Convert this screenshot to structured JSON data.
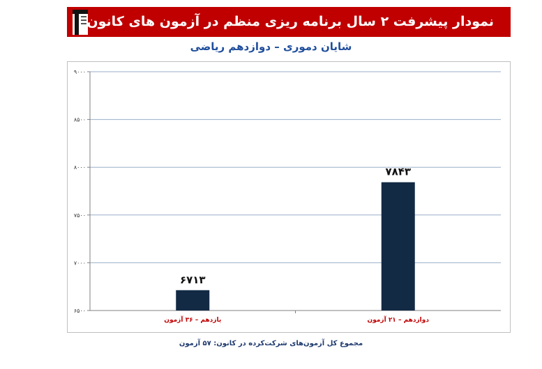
{
  "header": {
    "title": "نمودار پیشرفت ۲ سال برنامه ریزی منظم در آزمون های کانون",
    "subtitle": "شایان دموری – دوازدهم ریاضی",
    "banner_color": "#c00000",
    "logo_icon": "kanoon-logo-icon"
  },
  "footer": {
    "note": "مجموع کل آزمون‌های شرکت‌کرده در کانون: ۵۷ آزمون"
  },
  "chart_data": {
    "type": "bar",
    "categories": [
      "یازدهم – ۳۶ آزمون",
      "دوازدهم – ۲۱ آزمون"
    ],
    "values": [
      6713,
      7843
    ],
    "value_labels": [
      "۶۷۱۳",
      "۷۸۴۳"
    ],
    "ylim": [
      6500,
      9000
    ],
    "yticks": [
      6500,
      7000,
      7500,
      8000,
      8500,
      9000
    ],
    "ytick_labels": [
      "۶۵۰۰",
      "۷۰۰۰",
      "۷۵۰۰",
      "۸۰۰۰",
      "۸۵۰۰",
      "۹۰۰۰"
    ],
    "grid": true,
    "bar_color": "#132a45",
    "category_label_color": "#c00000"
  }
}
